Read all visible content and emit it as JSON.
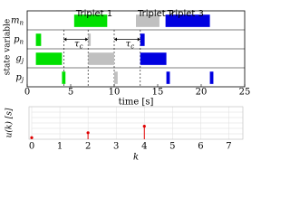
{
  "chart_data": [
    {
      "type": "gantt",
      "categories": [
        "m",
        "p",
        "g",
        "p"
      ],
      "category_subscripts": [
        "n",
        "n",
        "j",
        "j"
      ],
      "ylabel": "state variable",
      "xlabel": "time [s]",
      "xlim": [
        0,
        25
      ],
      "xticks": [
        0,
        5,
        10,
        15,
        20,
        25
      ],
      "series": [
        {
          "name": "Triplet 1",
          "color": "#00e000",
          "bars": [
            {
              "row": 0,
              "start": 5.4,
              "end": 9.2
            },
            {
              "row": 1,
              "start": 1,
              "end": 1.6
            },
            {
              "row": 2,
              "start": 1,
              "end": 4
            },
            {
              "row": 3,
              "start": 4,
              "end": 4.4
            }
          ]
        },
        {
          "name": "Triplet 2",
          "color": "#c0c0c0",
          "bars": [
            {
              "row": 0,
              "start": 12.5,
              "end": 15.2
            },
            {
              "row": 1,
              "start": 7,
              "end": 7.3
            },
            {
              "row": 2,
              "start": 7,
              "end": 10
            },
            {
              "row": 3,
              "start": 10,
              "end": 10.4
            }
          ]
        },
        {
          "name": "Triplet 3",
          "color": "#0000e0",
          "bars": [
            {
              "row": 0,
              "start": 15.9,
              "end": 21
            },
            {
              "row": 1,
              "start": 13,
              "end": 13.5
            },
            {
              "row": 2,
              "start": 13,
              "end": 16
            },
            {
              "row": 3,
              "start": 16,
              "end": 16.4
            },
            {
              "row": 3,
              "start": 21,
              "end": 21.4
            }
          ]
        }
      ],
      "dashed_lines": [
        4.2,
        7,
        10,
        13
      ],
      "annotations": [
        {
          "text": "τ",
          "sub": "c",
          "from": 4.2,
          "to": 7
        },
        {
          "text": "τ",
          "sub": "c",
          "from": 10,
          "to": 13
        }
      ]
    },
    {
      "type": "stem",
      "ylabel": "u(k) [s]",
      "xlabel": "k",
      "x": [
        0,
        2,
        4
      ],
      "values": [
        1.5,
        6,
        12
      ],
      "color": "#e00000",
      "xlim": [
        0,
        7.5
      ],
      "xticks": [
        0,
        1,
        2,
        3,
        4,
        5,
        6,
        7
      ],
      "ylim": [
        0,
        30
      ],
      "grid": true
    }
  ]
}
